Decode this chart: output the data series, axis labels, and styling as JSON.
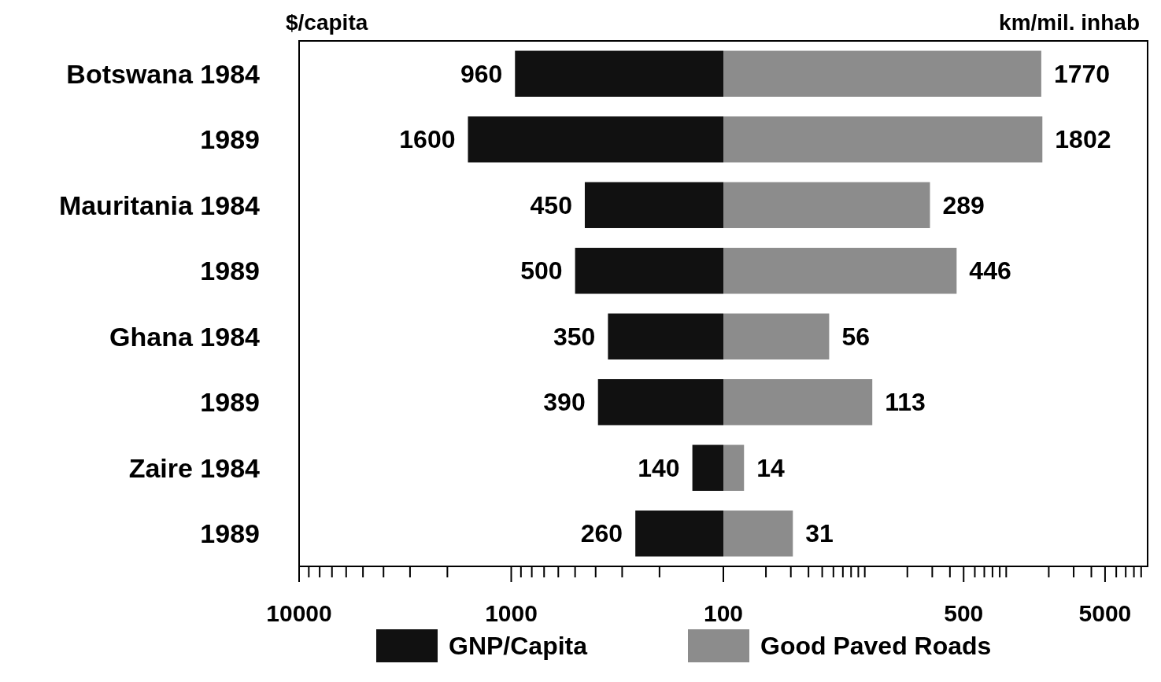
{
  "chart_data": [
    {
      "type": "bar",
      "orientation": "horizontal",
      "log": "x",
      "categories": [
        "Botswana 1984",
        "1989",
        "Mauritania 1984",
        "1989",
        "Ghana 1984",
        "1989",
        "Zaire 1984",
        "1989"
      ],
      "xlabel": "$/capita",
      "xlim": [
        10000,
        100
      ],
      "xticks": [
        10000,
        {
          "value": 9000,
          "label": null
        },
        {
          "value": 8000,
          "label": null
        },
        {
          "value": 7000,
          "label": null
        },
        {
          "value": 6000,
          "label": null
        },
        {
          "value": 5000,
          "label": null
        },
        {
          "value": 4000,
          "label": null
        },
        {
          "value": 3000,
          "label": null
        },
        {
          "value": 2000,
          "label": null
        },
        1000,
        {
          "value": 900,
          "label": null
        },
        {
          "value": 800,
          "label": null
        },
        {
          "value": 700,
          "label": null
        },
        {
          "value": 600,
          "label": null
        },
        {
          "value": 500,
          "label": null
        },
        {
          "value": 400,
          "label": null
        },
        {
          "value": 300,
          "label": null
        },
        {
          "value": 200,
          "label": null
        },
        100
      ],
      "series": [
        {
          "name": "GNP/Capita",
          "color": "#111111",
          "values": [
            960,
            1600,
            450,
            500,
            350,
            390,
            140,
            260
          ]
        }
      ],
      "data_labels": true,
      "legend": "bottom"
    },
    {
      "type": "bar",
      "orientation": "horizontal",
      "log": "x",
      "categories": [
        null,
        null,
        null,
        null,
        null,
        null,
        null,
        null
      ],
      "xlabel": "km/mil. inhab",
      "tick_labels": "x",
      "xlim": [
        10,
        10000
      ],
      "xticks": [
        {
          "value": 20,
          "label": null
        },
        {
          "value": 30,
          "label": null
        },
        {
          "value": 40,
          "label": null
        },
        {
          "value": 50,
          "label": null
        },
        {
          "value": 60,
          "label": null
        },
        {
          "value": 70,
          "label": null
        },
        {
          "value": 80,
          "label": null
        },
        {
          "value": 90,
          "label": null
        },
        {
          "value": 100,
          "label": null
        },
        {
          "value": 200,
          "label": null
        },
        {
          "value": 300,
          "label": null
        },
        {
          "value": 400,
          "label": null
        },
        500,
        {
          "value": 600,
          "label": null
        },
        {
          "value": 700,
          "label": null
        },
        {
          "value": 800,
          "label": null
        },
        {
          "value": 900,
          "label": null
        },
        {
          "value": 1000,
          "label": null
        },
        {
          "value": 2000,
          "label": null
        },
        {
          "value": 3000,
          "label": null
        },
        {
          "value": 4000,
          "label": null
        },
        5000,
        {
          "value": 6000,
          "label": null
        },
        {
          "value": 7000,
          "label": null
        },
        {
          "value": 8000,
          "label": null
        },
        {
          "value": 9000,
          "label": null
        }
      ],
      "series": [
        {
          "name": "Good Paved Roads",
          "color": "#8c8c8c",
          "values": [
            1770,
            1802,
            289,
            446,
            56,
            113,
            14,
            31
          ]
        }
      ],
      "data_labels": true,
      "legend": "bottom"
    }
  ]
}
